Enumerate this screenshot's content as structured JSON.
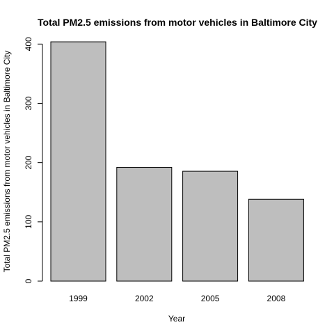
{
  "chart_data": {
    "type": "bar",
    "title": "Total PM2.5 emissions from motor vehicles in Baltimore City",
    "xlabel": "Year",
    "ylabel": "Total PM2.5 emissions from motor vehicles in Baltimore City",
    "categories": [
      "1999",
      "2002",
      "2005",
      "2008"
    ],
    "values": [
      403.8,
      192.0,
      185.4,
      138.2
    ],
    "ylim": [
      0,
      410
    ],
    "yticks": [
      0,
      100,
      200,
      300,
      400
    ],
    "grid": false,
    "bar_color": "#bebebe",
    "bar_border_color": "#000000"
  }
}
